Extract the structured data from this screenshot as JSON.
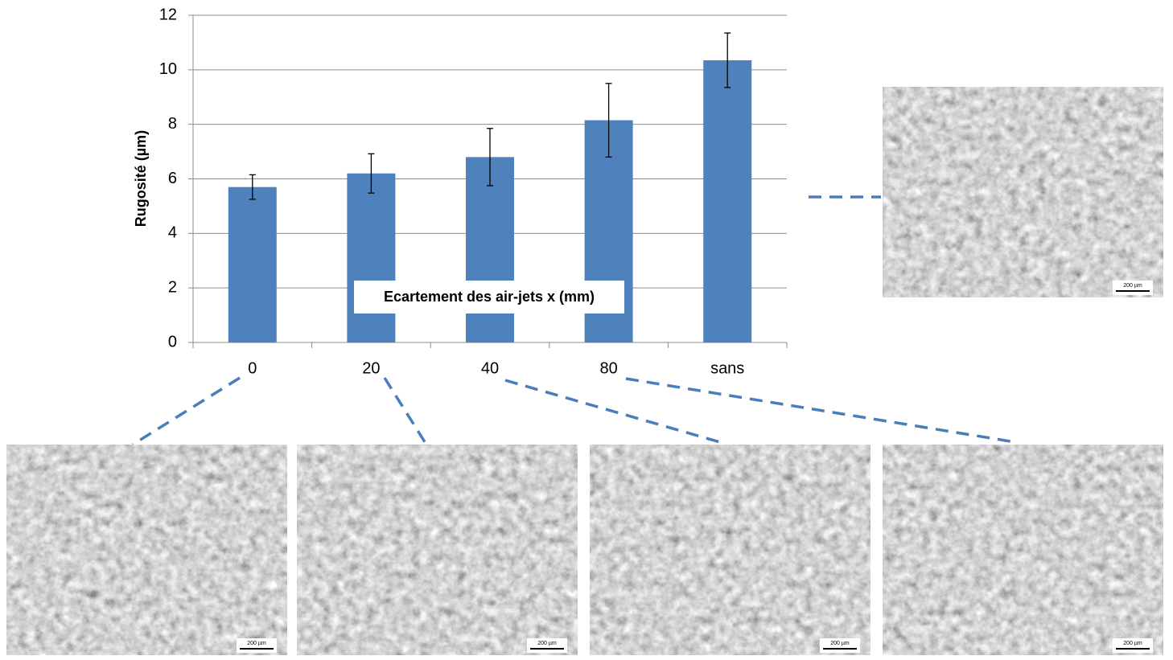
{
  "chart_data": {
    "type": "bar",
    "ylabel": "Rugosité (µm)",
    "xlabel": "Ecartement des air-jets x (mm)",
    "categories": [
      "0",
      "20",
      "40",
      "80",
      "sans"
    ],
    "values": [
      5.7,
      6.2,
      6.8,
      8.15,
      10.35
    ],
    "errors": [
      0.45,
      0.72,
      1.05,
      1.35,
      1.0
    ],
    "color": "#4f81bd",
    "ylim": [
      0,
      12
    ],
    "yticks": [
      0,
      2,
      4,
      6,
      8,
      10,
      12
    ],
    "grid": true
  },
  "micrographs": [
    {
      "scale": "200 µm"
    },
    {
      "scale": "200 µm"
    },
    {
      "scale": "200 µm"
    },
    {
      "scale": "200 µm"
    },
    {
      "scale": "200 µm"
    }
  ]
}
